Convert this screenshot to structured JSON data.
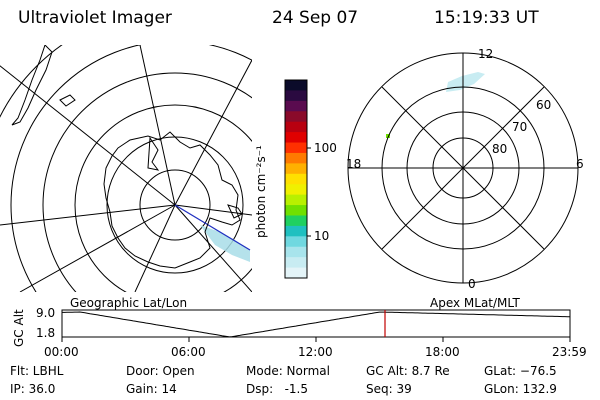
{
  "header": {
    "instrument": "Ultraviolet Imager",
    "date": "24 Sep 07",
    "time": "15:19:33 UT"
  },
  "colorbar": {
    "unit_label": "photon cm⁻²s⁻¹",
    "ticks": [
      "100",
      "10"
    ],
    "colors": [
      "#0b0b2a",
      "#2a0a40",
      "#5a0b4f",
      "#8a0a2a",
      "#b80010",
      "#e00000",
      "#ff3000",
      "#ff7a00",
      "#ffb000",
      "#ffe000",
      "#f0f000",
      "#b8f000",
      "#70e000",
      "#20d060",
      "#20c0c0",
      "#70d8e0",
      "#a8e4ec",
      "#c8ecf2",
      "#e4f4f8"
    ]
  },
  "polar_plot": {
    "labels": {
      "mlt_top": "12",
      "mlt_bottom": "0",
      "mlt_left": "18",
      "mlt_right": "6",
      "lat_60": "60",
      "lat_70": "70",
      "lat_80": "80"
    }
  },
  "timeline": {
    "left_title": "Geographic Lat/Lon",
    "right_title": "Apex MLat/MLT",
    "yaxis_label": "GC Alt",
    "ytick_top": "9.0",
    "ytick_bottom": "1.8",
    "xticks": [
      "00:00",
      "06:00",
      "12:00",
      "18:00",
      "23:59"
    ],
    "marker_color": "#c00000"
  },
  "info": {
    "flt": "Flt: LBHL",
    "ip": "IP: 36.0",
    "door": "Door: Open",
    "gain": "Gain: 14",
    "mode": "Mode: Normal",
    "dsp": "Dsp:   -1.5",
    "gcalt": "GC Alt: 8.7 Re",
    "seq": "Seq: 39",
    "glat": "GLat: −76.5",
    "glon": "GLon: 132.9"
  }
}
